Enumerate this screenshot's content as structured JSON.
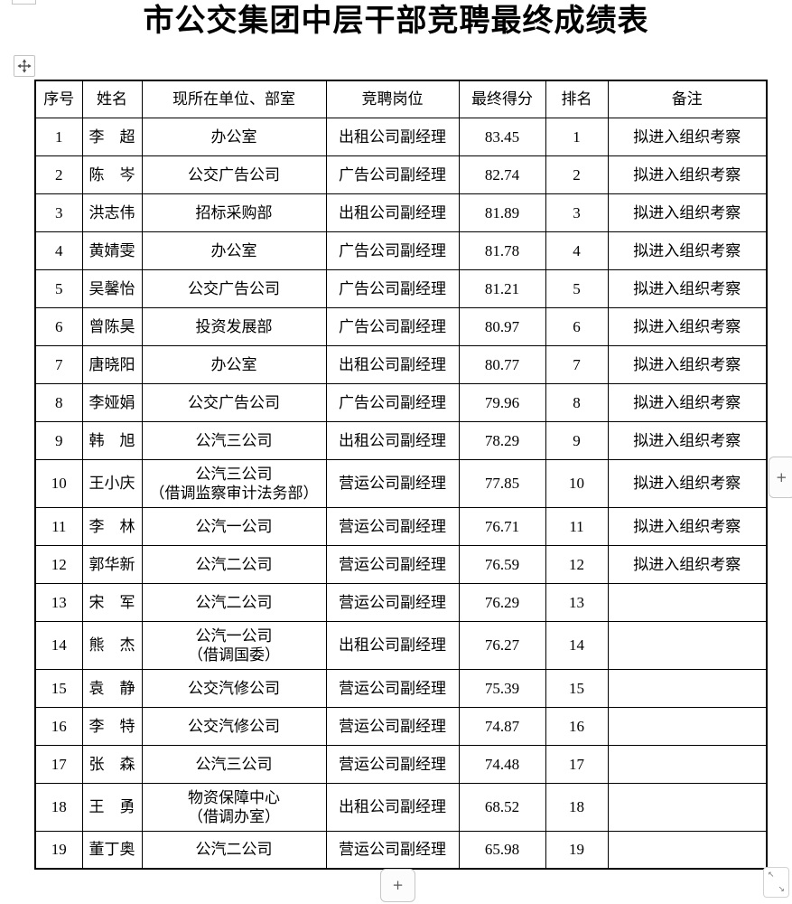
{
  "title": "市公交集团中层干部竞聘最终成绩表",
  "table": {
    "headers": [
      "序号",
      "姓名",
      "现所在单位、部室",
      "竞聘岗位",
      "最终得分",
      "排名",
      "备注"
    ],
    "rows": [
      {
        "no": "1",
        "name": "李　超",
        "unit": "办公室",
        "position": "出租公司副经理",
        "score": "83.45",
        "rank": "1",
        "note": "拟进入组织考察",
        "tall": false
      },
      {
        "no": "2",
        "name": "陈　岑",
        "unit": "公交广告公司",
        "position": "广告公司副经理",
        "score": "82.74",
        "rank": "2",
        "note": "拟进入组织考察",
        "tall": false
      },
      {
        "no": "3",
        "name": "洪志伟",
        "unit": "招标采购部",
        "position": "出租公司副经理",
        "score": "81.89",
        "rank": "3",
        "note": "拟进入组织考察",
        "tall": false
      },
      {
        "no": "4",
        "name": "黄婧雯",
        "unit": "办公室",
        "position": "广告公司副经理",
        "score": "81.78",
        "rank": "4",
        "note": "拟进入组织考察",
        "tall": false
      },
      {
        "no": "5",
        "name": "吴馨怡",
        "unit": "公交广告公司",
        "position": "广告公司副经理",
        "score": "81.21",
        "rank": "5",
        "note": "拟进入组织考察",
        "tall": false
      },
      {
        "no": "6",
        "name": "曾陈昊",
        "unit": "投资发展部",
        "position": "广告公司副经理",
        "score": "80.97",
        "rank": "6",
        "note": "拟进入组织考察",
        "tall": false
      },
      {
        "no": "7",
        "name": "唐晓阳",
        "unit": "办公室",
        "position": "出租公司副经理",
        "score": "80.77",
        "rank": "7",
        "note": "拟进入组织考察",
        "tall": false
      },
      {
        "no": "8",
        "name": "李娅娟",
        "unit": "公交广告公司",
        "position": "广告公司副经理",
        "score": "79.96",
        "rank": "8",
        "note": "拟进入组织考察",
        "tall": false
      },
      {
        "no": "9",
        "name": "韩　旭",
        "unit": "公汽三公司",
        "position": "出租公司副经理",
        "score": "78.29",
        "rank": "9",
        "note": "拟进入组织考察",
        "tall": false
      },
      {
        "no": "10",
        "name": "王小庆",
        "unit": "公汽三公司\n（借调监察审计法务部）",
        "position": "营运公司副经理",
        "score": "77.85",
        "rank": "10",
        "note": "拟进入组织考察",
        "tall": true
      },
      {
        "no": "11",
        "name": "李　林",
        "unit": "公汽一公司",
        "position": "营运公司副经理",
        "score": "76.71",
        "rank": "11",
        "note": "拟进入组织考察",
        "tall": false
      },
      {
        "no": "12",
        "name": "郭华新",
        "unit": "公汽二公司",
        "position": "营运公司副经理",
        "score": "76.59",
        "rank": "12",
        "note": "拟进入组织考察",
        "tall": false
      },
      {
        "no": "13",
        "name": "宋　军",
        "unit": "公汽二公司",
        "position": "营运公司副经理",
        "score": "76.29",
        "rank": "13",
        "note": "",
        "tall": false
      },
      {
        "no": "14",
        "name": "熊　杰",
        "unit": "公汽一公司\n（借调国委）",
        "position": "出租公司副经理",
        "score": "76.27",
        "rank": "14",
        "note": "",
        "tall": true
      },
      {
        "no": "15",
        "name": "袁　静",
        "unit": "公交汽修公司",
        "position": "营运公司副经理",
        "score": "75.39",
        "rank": "15",
        "note": "",
        "tall": false
      },
      {
        "no": "16",
        "name": "李　特",
        "unit": "公交汽修公司",
        "position": "营运公司副经理",
        "score": "74.87",
        "rank": "16",
        "note": "",
        "tall": false
      },
      {
        "no": "17",
        "name": "张　森",
        "unit": "公汽三公司",
        "position": "营运公司副经理",
        "score": "74.48",
        "rank": "17",
        "note": "",
        "tall": false
      },
      {
        "no": "18",
        "name": "王　勇",
        "unit": "物资保障中心\n（借调办室）",
        "position": "出租公司副经理",
        "score": "68.52",
        "rank": "18",
        "note": "",
        "tall": true
      },
      {
        "no": "19",
        "name": "董丁奥",
        "unit": "公汽二公司",
        "position": "营运公司副经理",
        "score": "65.98",
        "rank": "19",
        "note": "",
        "tall": false
      }
    ]
  },
  "controls": {
    "move_handle_icon": "four-way-move-arrow",
    "side_add_label": "+",
    "bottom_add_label": "+",
    "resize_nw_arrow": "↖",
    "resize_se_arrow": "↘"
  },
  "colors": {
    "text": "#000000",
    "table_border": "#000000",
    "control_border": "#c6c6c6",
    "control_glyph": "#5a5a5a",
    "background": "#ffffff"
  }
}
